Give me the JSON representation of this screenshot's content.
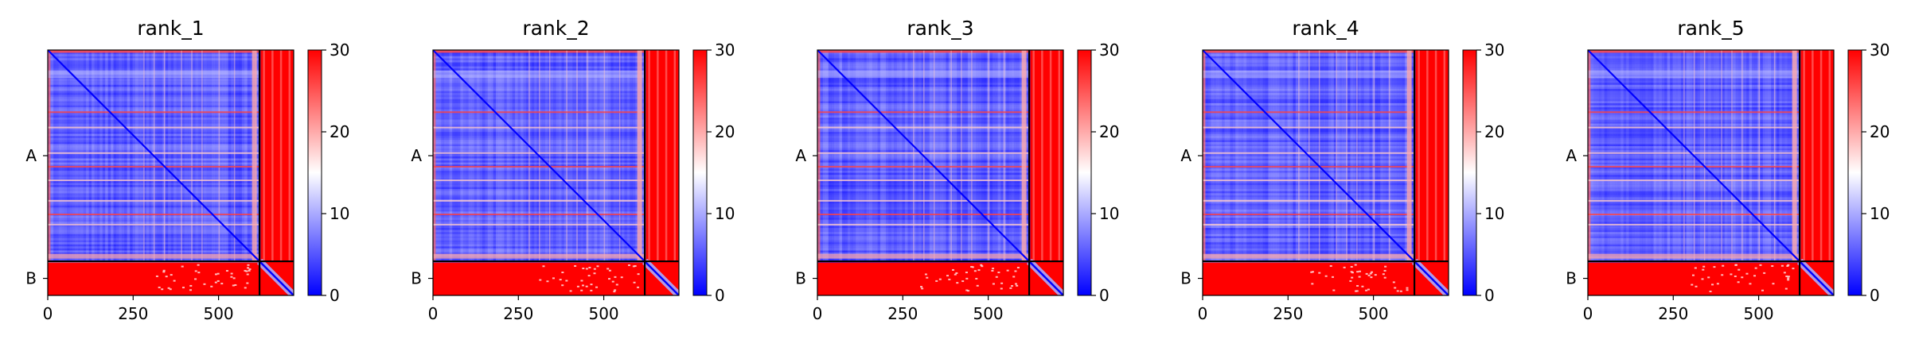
{
  "chart_data": [
    {
      "type": "heatmap",
      "title": "rank_1",
      "x": {
        "ticks": [
          0,
          250,
          500
        ],
        "range": [
          0,
          720
        ]
      },
      "y": {
        "tick_labels": [
          "A",
          "B"
        ],
        "chain_boundary": 620,
        "range": [
          0,
          720
        ]
      },
      "colorbar": {
        "ticks": [
          0,
          10,
          20,
          30
        ],
        "range": [
          0,
          30
        ],
        "colors": [
          "#0000ff",
          "#ffffff",
          "#ff0000"
        ]
      },
      "chains": [
        {
          "name": "A",
          "start": 0,
          "end": 620
        },
        {
          "name": "B",
          "start": 620,
          "end": 720
        }
      ]
    },
    {
      "type": "heatmap",
      "title": "rank_2",
      "x": {
        "ticks": [
          0,
          250,
          500
        ],
        "range": [
          0,
          720
        ]
      },
      "y": {
        "tick_labels": [
          "A",
          "B"
        ],
        "chain_boundary": 620,
        "range": [
          0,
          720
        ]
      },
      "colorbar": {
        "ticks": [
          0,
          10,
          20,
          30
        ],
        "range": [
          0,
          30
        ],
        "colors": [
          "#0000ff",
          "#ffffff",
          "#ff0000"
        ]
      },
      "chains": [
        {
          "name": "A",
          "start": 0,
          "end": 620
        },
        {
          "name": "B",
          "start": 620,
          "end": 720
        }
      ]
    },
    {
      "type": "heatmap",
      "title": "rank_3",
      "x": {
        "ticks": [
          0,
          250,
          500
        ],
        "range": [
          0,
          720
        ]
      },
      "y": {
        "tick_labels": [
          "A",
          "B"
        ],
        "chain_boundary": 620,
        "range": [
          0,
          720
        ]
      },
      "colorbar": {
        "ticks": [
          0,
          10,
          20,
          30
        ],
        "range": [
          0,
          30
        ],
        "colors": [
          "#0000ff",
          "#ffffff",
          "#ff0000"
        ]
      },
      "chains": [
        {
          "name": "A",
          "start": 0,
          "end": 620
        },
        {
          "name": "B",
          "start": 620,
          "end": 720
        }
      ]
    },
    {
      "type": "heatmap",
      "title": "rank_4",
      "x": {
        "ticks": [
          0,
          250,
          500
        ],
        "range": [
          0,
          720
        ]
      },
      "y": {
        "tick_labels": [
          "A",
          "B"
        ],
        "chain_boundary": 620,
        "range": [
          0,
          720
        ]
      },
      "colorbar": {
        "ticks": [
          0,
          10,
          20,
          30
        ],
        "range": [
          0,
          30
        ],
        "colors": [
          "#0000ff",
          "#ffffff",
          "#ff0000"
        ]
      },
      "chains": [
        {
          "name": "A",
          "start": 0,
          "end": 620
        },
        {
          "name": "B",
          "start": 620,
          "end": 720
        }
      ]
    },
    {
      "type": "heatmap",
      "title": "rank_5",
      "x": {
        "ticks": [
          0,
          250,
          500
        ],
        "range": [
          0,
          720
        ]
      },
      "y": {
        "tick_labels": [
          "A",
          "B"
        ],
        "chain_boundary": 620,
        "range": [
          0,
          720
        ]
      },
      "colorbar": {
        "ticks": [
          0,
          10,
          20,
          30
        ],
        "range": [
          0,
          30
        ],
        "colors": [
          "#0000ff",
          "#ffffff",
          "#ff0000"
        ]
      },
      "chains": [
        {
          "name": "A",
          "start": 0,
          "end": 620
        },
        {
          "name": "B",
          "start": 620,
          "end": 720
        }
      ]
    }
  ]
}
